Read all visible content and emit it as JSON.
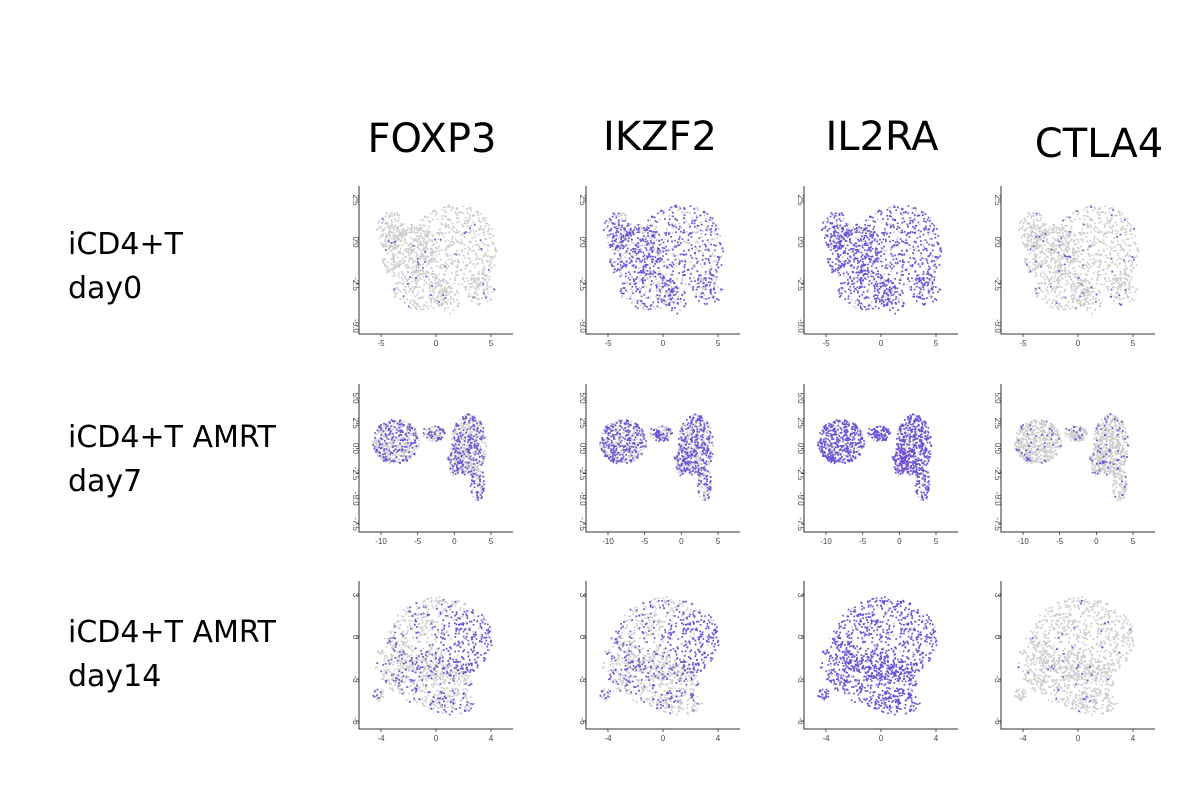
{
  "chart_data": {
    "type": "scatter",
    "genes": [
      "FOXP3",
      "IKZF2",
      "IL2RA",
      "CTLA4"
    ],
    "conditions": [
      {
        "label_lines": [
          "iCD4+T",
          "day0"
        ]
      },
      {
        "label_lines": [
          "iCD4+T AMRT",
          "day7"
        ]
      },
      {
        "label_lines": [
          "iCD4+T AMRT",
          "day14"
        ]
      }
    ],
    "colors": {
      "low": "#cccccc",
      "high": "#6a4fd8",
      "axis": "#333333"
    },
    "panels": [
      [
        {
          "gene": "FOXP3",
          "expression": 0.03,
          "xticks": [
            "-5",
            "0",
            "5"
          ],
          "yticks": [
            "2.5",
            "0.0",
            "-2.5",
            "-5.0"
          ]
        },
        {
          "gene": "IKZF2",
          "expression": 0.55,
          "xticks": [
            "-5",
            "0",
            "5"
          ],
          "yticks": [
            "2.5",
            "0.0",
            "-2.5",
            "-5.0"
          ]
        },
        {
          "gene": "IL2RA",
          "expression": 0.75,
          "xticks": [
            "-5",
            "0",
            "5"
          ],
          "yticks": [
            "2.5",
            "0.0",
            "-2.5",
            "-5.0"
          ]
        },
        {
          "gene": "CTLA4",
          "expression": 0.05,
          "xticks": [
            "-5",
            "0",
            "5"
          ],
          "yticks": [
            "2.5",
            "0.0",
            "-2.5",
            "-5.0"
          ]
        }
      ],
      [
        {
          "gene": "FOXP3",
          "expression": 0.35,
          "xticks": [
            "-10",
            "-5",
            "0",
            "5"
          ],
          "yticks": [
            "5.0",
            "2.5",
            "0.0",
            "-2.5",
            "-5.0",
            "-7.5"
          ]
        },
        {
          "gene": "IKZF2",
          "expression": 0.5,
          "xticks": [
            "-10",
            "-5",
            "0",
            "5"
          ],
          "yticks": [
            "5.0",
            "2.5",
            "0.0",
            "-2.5",
            "-5.0",
            "-7.5"
          ]
        },
        {
          "gene": "IL2RA",
          "expression": 0.8,
          "xticks": [
            "-10",
            "-5",
            "0",
            "5"
          ],
          "yticks": [
            "5.0",
            "2.5",
            "0.0",
            "-2.5",
            "-5.0",
            "-7.5"
          ]
        },
        {
          "gene": "CTLA4",
          "expression": 0.08,
          "xticks": [
            "-10",
            "-5",
            "0",
            "5"
          ],
          "yticks": [
            "5.0",
            "2.5",
            "0.0",
            "-2.5",
            "-5.0",
            "-7.5"
          ]
        }
      ],
      [
        {
          "gene": "FOXP3",
          "expression": 0.4,
          "xticks": [
            "-4",
            "0",
            "4"
          ],
          "yticks": [
            "3",
            "0",
            "-3",
            "-6"
          ]
        },
        {
          "gene": "IKZF2",
          "expression": 0.45,
          "xticks": [
            "-4",
            "0",
            "4"
          ],
          "yticks": [
            "3",
            "0",
            "-3",
            "-6"
          ]
        },
        {
          "gene": "IL2RA",
          "expression": 0.9,
          "xticks": [
            "-4",
            "0",
            "4"
          ],
          "yticks": [
            "3",
            "0",
            "-3",
            "-6"
          ]
        },
        {
          "gene": "CTLA4",
          "expression": 0.03,
          "xticks": [
            "-4",
            "0",
            "4"
          ],
          "yticks": [
            "3",
            "0",
            "-3",
            "-6"
          ]
        }
      ]
    ]
  }
}
